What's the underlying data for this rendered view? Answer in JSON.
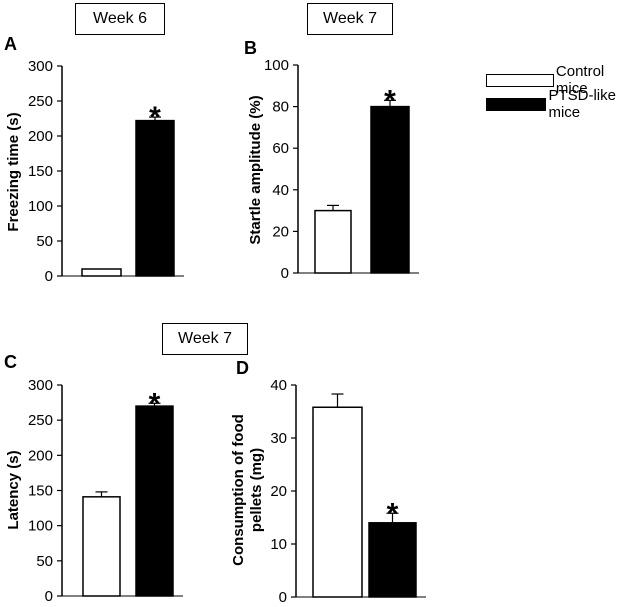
{
  "week_labels": {
    "a": "Week 6",
    "b": "Week 7",
    "c": "Week 7"
  },
  "legend": [
    {
      "label": "Control mice",
      "color": "#ffffff"
    },
    {
      "label": "PTSD-like mice",
      "color": "#000000"
    }
  ],
  "colors": {
    "control": "#ffffff",
    "ptsd": "#000000",
    "axis": "#000000"
  },
  "chart_data": [
    {
      "panel": "A",
      "type": "bar",
      "ylabel": "Freezing time (s)",
      "ylim": [
        0,
        300
      ],
      "yticks": [
        "0",
        "50",
        "100",
        "150",
        "200",
        "250",
        "300"
      ],
      "categories": [
        "Control mice",
        "PTSD-like mice"
      ],
      "values": [
        10,
        222
      ],
      "errors": [
        0,
        5
      ],
      "significance": [
        "",
        "*"
      ]
    },
    {
      "panel": "B",
      "type": "bar",
      "ylabel": "Startle amplitude (%)",
      "ylim": [
        0,
        100
      ],
      "yticks": [
        "0",
        "20",
        "40",
        "60",
        "80",
        "100"
      ],
      "categories": [
        "Control mice",
        "PTSD-like mice"
      ],
      "values": [
        30,
        80
      ],
      "errors": [
        2.5,
        3
      ],
      "significance": [
        "",
        "*"
      ]
    },
    {
      "panel": "C",
      "type": "bar",
      "ylabel": "Latency (s)",
      "ylim": [
        0,
        300
      ],
      "yticks": [
        "0",
        "50",
        "100",
        "150",
        "200",
        "250",
        "300"
      ],
      "categories": [
        "Control mice",
        "PTSD-like mice"
      ],
      "values": [
        141,
        270
      ],
      "errors": [
        7,
        4
      ],
      "significance": [
        "",
        "*"
      ]
    },
    {
      "panel": "D",
      "type": "bar",
      "ylabel": "Consumption of food pellets (mg)",
      "ylim": [
        0,
        40
      ],
      "yticks": [
        "0",
        "10",
        "20",
        "30",
        "40"
      ],
      "categories": [
        "Control mice",
        "PTSD-like mice"
      ],
      "values": [
        35.8,
        14
      ],
      "errors": [
        2.5,
        1.8
      ],
      "significance": [
        "",
        "*"
      ]
    }
  ]
}
